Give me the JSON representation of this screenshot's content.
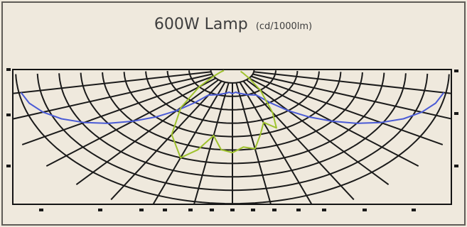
{
  "chart_data": {
    "type": "polar",
    "title": "600W Lamp",
    "unit_label": "(cd/1000lm)",
    "grid": true,
    "series": [
      {
        "color": "#4a5bd6",
        "r": [
          0.99,
          0.97,
          0.93,
          0.87,
          0.79,
          0.7,
          0.6,
          0.5,
          0.4,
          0.3,
          0.22,
          0.2,
          0.18,
          0.17,
          0.18,
          0.17,
          0.18,
          0.2,
          0.22,
          0.3,
          0.4,
          0.5,
          0.6,
          0.7,
          0.79,
          0.87,
          0.93,
          0.97,
          0.99
        ],
        "angles": [
          -80,
          -75,
          -70,
          -65,
          -60,
          -55,
          -50,
          -45,
          -40,
          -35,
          -30,
          -20,
          -10,
          -5,
          0,
          5,
          10,
          20,
          30,
          35,
          40,
          45,
          50,
          55,
          60,
          65,
          70,
          75,
          80
        ]
      },
      {
        "color": "#9fc22e",
        "r": [
          0.04,
          0.06,
          0.1,
          0.2,
          0.37,
          0.56,
          0.7,
          0.62,
          0.5,
          0.6,
          0.62,
          0.58,
          0.6,
          0.5,
          0.42,
          0.48,
          0.37,
          0.2,
          0.1,
          0.06,
          0.04
        ],
        "angles": [
          -80,
          -70,
          -60,
          -50,
          -40,
          -30,
          -20,
          -15,
          -10,
          -5,
          0,
          5,
          10,
          15,
          20,
          25,
          30,
          40,
          50,
          60,
          70
        ]
      }
    ]
  }
}
